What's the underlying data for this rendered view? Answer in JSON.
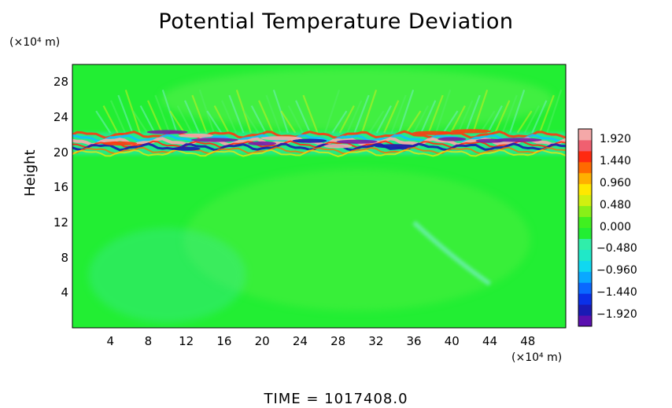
{
  "chart_data": {
    "type": "heatmap",
    "title": "Potential Temperature Deviation",
    "ylabel": "Height",
    "y_unit": "(×10⁴ m)",
    "x_unit": "(×10⁴ m)",
    "xlim": [
      0,
      52
    ],
    "ylim": [
      0,
      30
    ],
    "x_ticks": [
      "4",
      "8",
      "12",
      "16",
      "20",
      "24",
      "28",
      "32",
      "36",
      "40",
      "44",
      "48"
    ],
    "y_ticks": [
      "4",
      "8",
      "12",
      "16",
      "20",
      "24",
      "28"
    ],
    "colorbar": {
      "range": [
        -2.16,
        2.16
      ],
      "labels": [
        "1.920",
        "1.440",
        "0.960",
        "0.480",
        "0.000",
        "−0.480",
        "−0.960",
        "−1.440",
        "−1.920"
      ]
    },
    "footer": "TIME  =  1017408.0"
  },
  "colors": {
    "background_field": "#22ee33",
    "high": "#f0a0a0",
    "low": "#7b1aa6"
  }
}
